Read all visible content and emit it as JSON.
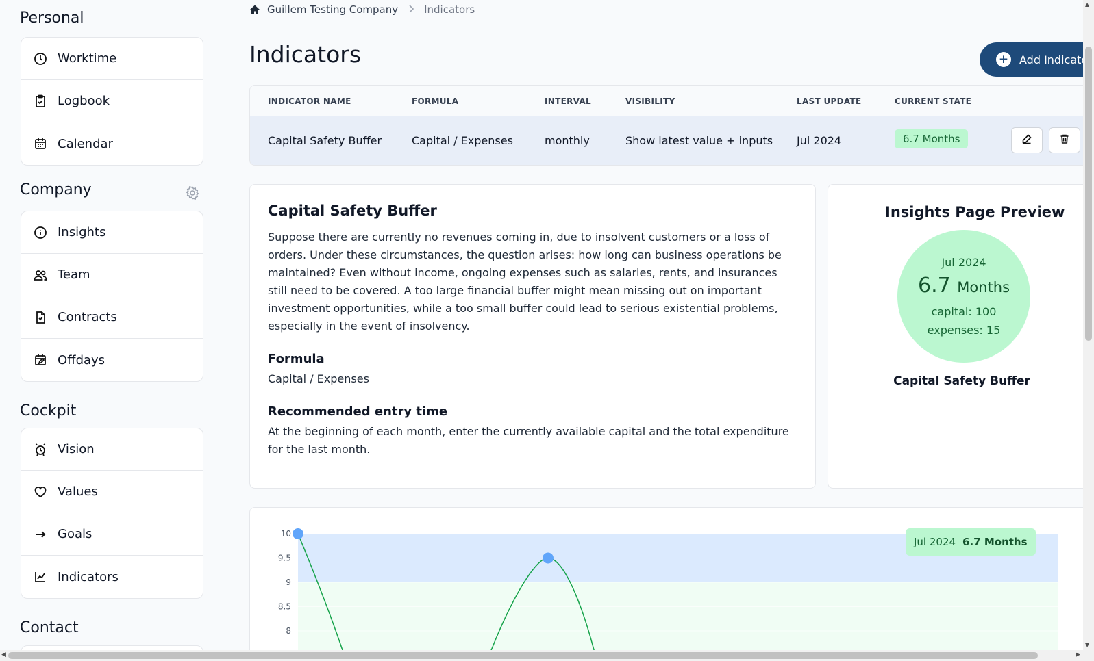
{
  "sidebar": {
    "personal": {
      "title": "Personal",
      "items": [
        {
          "label": "Worktime",
          "icon": "clock-icon"
        },
        {
          "label": "Logbook",
          "icon": "clipboard-check-icon"
        },
        {
          "label": "Calendar",
          "icon": "calendar-icon"
        }
      ]
    },
    "company": {
      "title": "Company",
      "settings_icon": "gear-icon",
      "items": [
        {
          "label": "Insights",
          "icon": "info-icon"
        },
        {
          "label": "Team",
          "icon": "users-icon"
        },
        {
          "label": "Contracts",
          "icon": "document-check-icon"
        },
        {
          "label": "Offdays",
          "icon": "calendar-edit-icon"
        }
      ]
    },
    "cockpit": {
      "title": "Cockpit",
      "items": [
        {
          "label": "Vision",
          "icon": "alarm-icon"
        },
        {
          "label": "Values",
          "icon": "heart-icon"
        },
        {
          "label": "Goals",
          "icon": "arrow-right-icon"
        },
        {
          "label": "Indicators",
          "icon": "line-chart-icon"
        }
      ]
    },
    "contact": {
      "title": "Contact"
    }
  },
  "breadcrumb": {
    "home": "Guillem Testing Company",
    "current": "Indicators"
  },
  "page": {
    "title": "Indicators",
    "add_button": "Add Indicator"
  },
  "table": {
    "headers": [
      "INDICATOR NAME",
      "FORMULA",
      "INTERVAL",
      "VISIBILITY",
      "LAST UPDATE",
      "CURRENT STATE"
    ],
    "row": {
      "name": "Capital Safety Buffer",
      "formula": "Capital / Expenses",
      "interval": "monthly",
      "visibility": "Show latest value + inputs",
      "last_update": "Jul 2024",
      "state": "6.7 Months"
    }
  },
  "detail": {
    "title": "Capital Safety Buffer",
    "description": "Suppose there are currently no revenues coming in, due to insolvent customers or a loss of orders. Under these circumstances, the question arises: how long can business operations be maintained? Even without income, ongoing expenses such as salaries, rents, and insurances still need to be covered. A too large financial buffer might mean missing out on important investment opportunities, while a too small buffer could lead to serious existential problems, especially in the event of insolvency.",
    "formula_heading": "Formula",
    "formula": "Capital / Expenses",
    "entry_heading": "Recommended entry time",
    "entry_text": "At the beginning of each month, enter the currently available capital and the total expenditure for the last month."
  },
  "preview": {
    "title": "Insights Page Preview",
    "date": "Jul 2024",
    "value": "6.7",
    "unit": "Months",
    "capital": "capital: 100",
    "expenses": "expenses: 15",
    "name": "Capital Safety Buffer",
    "circle_color": "#bbf7d0"
  },
  "colors": {
    "accent": "#1e4a7a",
    "good_band": "#f0fdf4",
    "warn_band": "#dbeafe",
    "line": "#16a34a",
    "point": "#60a5fa"
  },
  "chart_data": {
    "type": "line",
    "y_ticks": [
      "10",
      "9.5",
      "9",
      "8.5",
      "8"
    ],
    "ylim_visible": [
      8,
      10
    ],
    "bands": [
      {
        "from": 9,
        "to": 10,
        "color": "#dbeafe"
      },
      {
        "to": 9,
        "color": "#f0fdf4"
      }
    ],
    "points": [
      {
        "index": 0,
        "y": 10
      },
      {
        "index": 2,
        "y": 9.5
      }
    ],
    "latest_label": {
      "date": "Jul 2024",
      "value": "6.7 Months"
    }
  }
}
